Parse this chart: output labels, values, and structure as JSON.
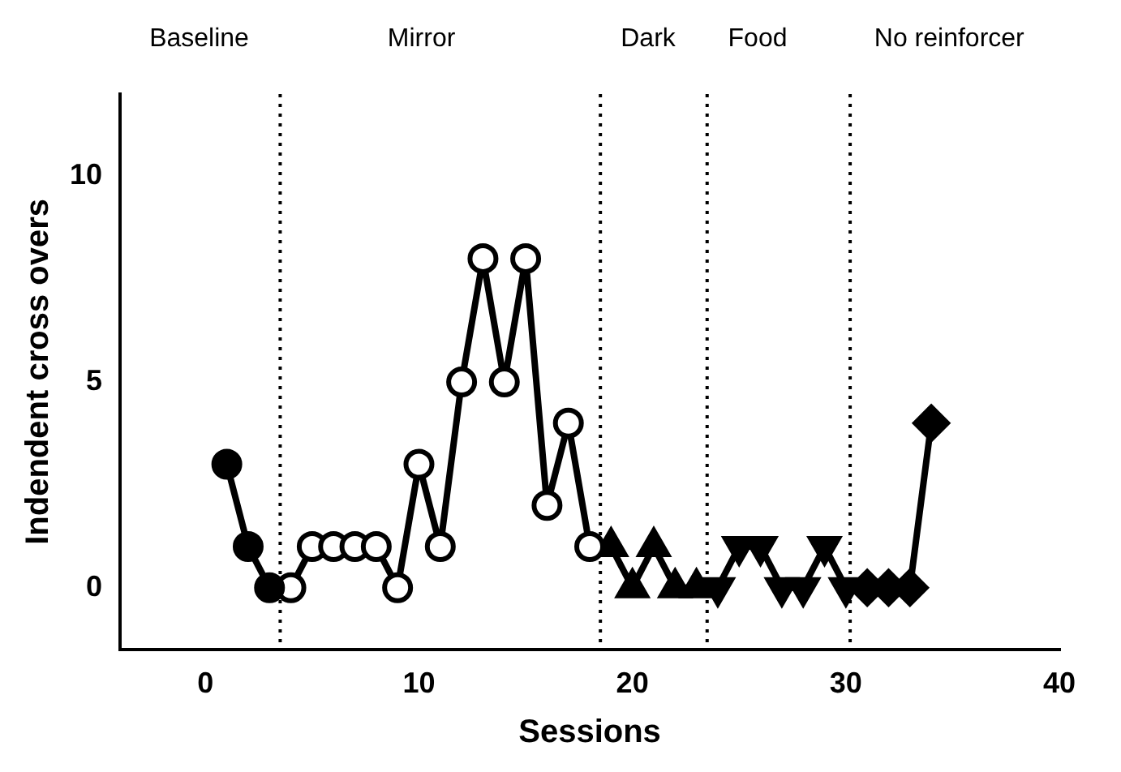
{
  "chart_data": {
    "type": "line",
    "xlabel": "Sessions",
    "ylabel": "Indendent cross overs",
    "xlim": [
      -4,
      40
    ],
    "xticks": [
      0,
      10,
      20,
      30,
      40
    ],
    "ylim": [
      -1.5,
      12
    ],
    "yticks": [
      0,
      5,
      10
    ],
    "grid": false,
    "legend": false,
    "line_style": "solid",
    "series": [
      {
        "color": "#000000",
        "marker": "circle",
        "x": [
          1,
          2,
          3
        ],
        "values": [
          3,
          1,
          0
        ]
      },
      {
        "color": "#000000",
        "marker": "circle-open",
        "x": [
          4,
          5,
          6,
          7,
          8,
          9,
          10,
          11,
          12,
          13,
          14,
          15,
          16,
          17,
          18
        ],
        "values": [
          0,
          1,
          1,
          1,
          1,
          0,
          3,
          1,
          5,
          8,
          5,
          8,
          2,
          4,
          1
        ]
      },
      {
        "color": "#000000",
        "marker": "triangle",
        "x": [
          19,
          20,
          21,
          22,
          23
        ],
        "values": [
          1,
          0,
          1,
          0,
          0
        ]
      },
      {
        "color": "#000000",
        "marker": "triangle-down",
        "x": [
          24,
          25,
          26,
          27,
          28,
          29,
          30
        ],
        "values": [
          0,
          1,
          1,
          0,
          0,
          1,
          0
        ]
      },
      {
        "color": "#000000",
        "marker": "diamond",
        "x": [
          31,
          32,
          33,
          34
        ],
        "values": [
          0,
          0,
          0,
          4
        ]
      }
    ],
    "ref_lines": [
      {
        "axis": "x",
        "value": 3.5,
        "line_style": "dotted",
        "color": "#000000"
      },
      {
        "axis": "x",
        "value": 18.5,
        "line_style": "dotted",
        "color": "#000000"
      },
      {
        "axis": "x",
        "value": 23.5,
        "line_style": "dotted",
        "color": "#000000"
      },
      {
        "axis": "x",
        "value": 30.2,
        "line_style": "dotted",
        "color": "#000000"
      }
    ],
    "annotations": [
      "Baseline",
      "Mirror",
      "Dark",
      "Food",
      "No reinforcer"
    ]
  }
}
